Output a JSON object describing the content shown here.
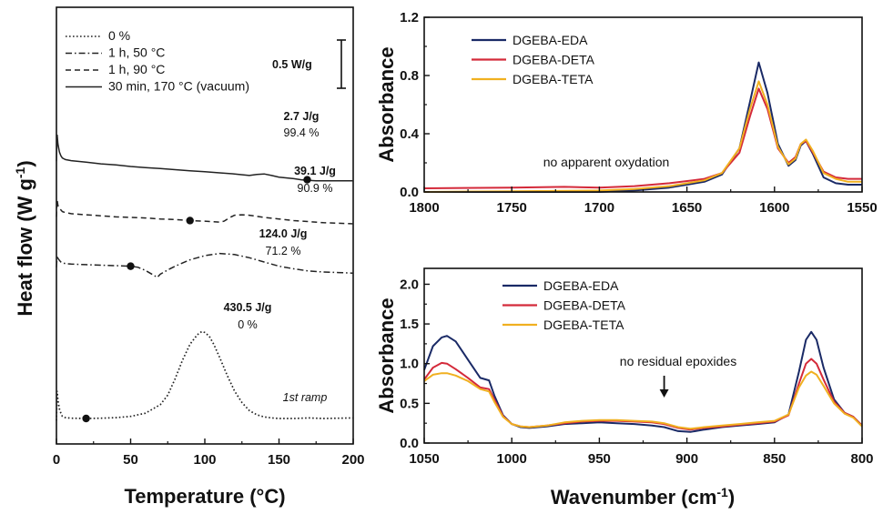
{
  "chart_data": [
    {
      "id": "dsc",
      "type": "line",
      "xlabel": "Temperature (°C)",
      "ylabel": "Heat flow (W g-1)",
      "ylabel_main": "Heat flow (W g",
      "ylabel_sup": "-1",
      "ylabel_tail": ")",
      "xlim": [
        0,
        200
      ],
      "xticks": [
        0,
        50,
        100,
        150,
        200
      ],
      "scale_bar_label": "0.5 W/g",
      "ramp_label": "1st ramp",
      "series": [
        {
          "name": "0 %",
          "style": "dotted",
          "x": [
            0,
            0.5,
            1,
            2,
            3,
            4,
            6,
            10,
            20,
            30,
            40,
            50,
            60,
            70,
            75,
            80,
            85,
            90,
            95,
            98,
            100,
            103,
            106,
            110,
            115,
            120,
            125,
            130,
            135,
            140,
            145,
            150,
            160,
            170,
            180,
            190,
            200
          ],
          "y": [
            -0.04,
            0.52,
            0.35,
            0.18,
            0.1,
            0.04,
            0.015,
            0.005,
            0.0,
            0.005,
            0.015,
            0.04,
            0.1,
            0.26,
            0.44,
            0.75,
            1.1,
            1.4,
            1.58,
            1.64,
            1.62,
            1.55,
            1.4,
            1.15,
            0.82,
            0.52,
            0.3,
            0.15,
            0.07,
            0.03,
            0.01,
            0.0,
            0.0,
            0.01,
            0.0,
            0.005,
            0.01
          ],
          "enthalpy": "430.5 J/g",
          "conversion": "0 %",
          "marker_x": 20,
          "marker_y": 0.0
        },
        {
          "name": "1 h, 50 °C",
          "style": "dashdot",
          "x": [
            0,
            0.5,
            1,
            2,
            3,
            4,
            6,
            10,
            20,
            30,
            40,
            50,
            55,
            60,
            65,
            68,
            70,
            75,
            80,
            90,
            100,
            110,
            120,
            130,
            140,
            150,
            160,
            170,
            180,
            190,
            200
          ],
          "y": [
            2.85,
            3.07,
            3.02,
            2.98,
            2.95,
            2.93,
            2.92,
            2.91,
            2.9,
            2.89,
            2.88,
            2.87,
            2.85,
            2.79,
            2.71,
            2.66,
            2.72,
            2.8,
            2.87,
            2.99,
            3.07,
            3.11,
            3.09,
            3.03,
            2.95,
            2.87,
            2.82,
            2.78,
            2.76,
            2.75,
            2.74
          ],
          "enthalpy": "124.0 J/g",
          "conversion": "71.2 %",
          "marker_x": 50,
          "marker_y": 2.87
        },
        {
          "name": "1 h, 90 °C",
          "style": "dashed",
          "x": [
            0,
            0.5,
            1,
            2,
            3,
            4,
            6,
            10,
            20,
            30,
            40,
            50,
            60,
            70,
            80,
            90,
            100,
            105,
            110,
            113,
            117,
            120,
            125,
            130,
            140,
            150,
            160,
            170,
            180,
            190,
            200
          ],
          "y": [
            3.8,
            4.12,
            4.02,
            3.96,
            3.93,
            3.9,
            3.88,
            3.86,
            3.84,
            3.82,
            3.8,
            3.79,
            3.78,
            3.76,
            3.75,
            3.73,
            3.72,
            3.71,
            3.7,
            3.72,
            3.79,
            3.83,
            3.84,
            3.83,
            3.79,
            3.76,
            3.73,
            3.71,
            3.69,
            3.68,
            3.67
          ],
          "enthalpy": "39.1 J/g",
          "conversion": "90.9 %",
          "marker_x": 90,
          "marker_y": 3.73
        },
        {
          "name": "30 min, 170 °C (vacuum)",
          "style": "solid",
          "x": [
            0,
            0.5,
            1,
            2,
            3,
            4,
            6,
            10,
            20,
            30,
            40,
            50,
            60,
            70,
            80,
            90,
            100,
            110,
            120,
            130,
            135,
            140,
            145,
            150,
            160,
            165,
            170,
            175,
            180,
            190,
            200
          ],
          "y": [
            4.85,
            5.35,
            5.18,
            5.02,
            4.95,
            4.91,
            4.88,
            4.86,
            4.83,
            4.8,
            4.78,
            4.75,
            4.73,
            4.71,
            4.69,
            4.67,
            4.65,
            4.63,
            4.61,
            4.58,
            4.6,
            4.61,
            4.58,
            4.55,
            4.52,
            4.5,
            4.49,
            4.48,
            4.48,
            4.48,
            4.48
          ],
          "enthalpy": "2.7 J/g",
          "conversion": "99.4 %",
          "marker_x": 169,
          "marker_y": 4.5
        }
      ]
    },
    {
      "id": "ftir-top",
      "type": "line",
      "xlabel": "",
      "ylabel": "Absorbance",
      "xlim": [
        1800,
        1550
      ],
      "ylim": [
        0,
        1.2
      ],
      "xticks": [
        1800,
        1750,
        1700,
        1650,
        1600,
        1550
      ],
      "yticks": [
        "0.0",
        "0.4",
        "0.8",
        "1.2"
      ],
      "annotation": "no apparent oxydation",
      "series": [
        {
          "name": "DGEBA-EDA",
          "color": "#1a2a66",
          "x": [
            1800,
            1750,
            1700,
            1680,
            1660,
            1640,
            1630,
            1620,
            1614,
            1609,
            1604,
            1598,
            1592,
            1588,
            1585,
            1582,
            1578,
            1572,
            1565,
            1558,
            1550
          ],
          "y": [
            0.0,
            0.0,
            0.0,
            0.01,
            0.03,
            0.07,
            0.12,
            0.3,
            0.62,
            0.89,
            0.68,
            0.33,
            0.18,
            0.22,
            0.32,
            0.35,
            0.26,
            0.1,
            0.06,
            0.05,
            0.05
          ]
        },
        {
          "name": "DGEBA-DETA",
          "color": "#d42a3a",
          "x": [
            1800,
            1750,
            1720,
            1700,
            1680,
            1660,
            1640,
            1630,
            1620,
            1614,
            1609,
            1604,
            1598,
            1592,
            1588,
            1585,
            1582,
            1578,
            1572,
            1565,
            1558,
            1550
          ],
          "y": [
            0.025,
            0.03,
            0.035,
            0.03,
            0.04,
            0.06,
            0.09,
            0.13,
            0.27,
            0.52,
            0.71,
            0.57,
            0.3,
            0.2,
            0.24,
            0.33,
            0.35,
            0.27,
            0.14,
            0.1,
            0.09,
            0.09
          ]
        },
        {
          "name": "DGEBA-TETA",
          "color": "#f0b020",
          "x": [
            1800,
            1750,
            1700,
            1680,
            1660,
            1640,
            1630,
            1620,
            1614,
            1609,
            1604,
            1598,
            1592,
            1588,
            1585,
            1582,
            1578,
            1572,
            1565,
            1558,
            1550
          ],
          "y": [
            0.0,
            0.005,
            0.01,
            0.02,
            0.04,
            0.08,
            0.13,
            0.3,
            0.57,
            0.76,
            0.6,
            0.31,
            0.19,
            0.23,
            0.33,
            0.36,
            0.28,
            0.13,
            0.09,
            0.07,
            0.07
          ]
        }
      ]
    },
    {
      "id": "ftir-bottom",
      "type": "line",
      "xlabel": "Wavenumber (cm-1)",
      "xlabel_main": "Wavenumber (cm",
      "xlabel_sup": "-1",
      "xlabel_tail": ")",
      "ylabel": "Absorbance",
      "xlim": [
        1050,
        800
      ],
      "ylim": [
        0,
        2.0
      ],
      "xticks": [
        1050,
        1000,
        950,
        900,
        850,
        800
      ],
      "yticks": [
        "0.0",
        "0.5",
        "1.0",
        "1.5",
        "2.0"
      ],
      "annotation": "no residual epoxides",
      "arrow_x": 913,
      "series": [
        {
          "name": "DGEBA-EDA",
          "color": "#1a2a66",
          "x": [
            1050,
            1045,
            1040,
            1037,
            1032,
            1025,
            1018,
            1013,
            1010,
            1005,
            1000,
            995,
            990,
            980,
            970,
            960,
            950,
            940,
            930,
            920,
            913,
            905,
            898,
            890,
            880,
            870,
            860,
            850,
            842,
            836,
            832,
            829,
            826,
            822,
            816,
            810,
            805,
            800
          ],
          "y": [
            0.92,
            1.22,
            1.33,
            1.35,
            1.28,
            1.05,
            0.82,
            0.79,
            0.6,
            0.35,
            0.24,
            0.2,
            0.19,
            0.21,
            0.24,
            0.25,
            0.26,
            0.25,
            0.24,
            0.22,
            0.2,
            0.15,
            0.14,
            0.17,
            0.2,
            0.22,
            0.24,
            0.26,
            0.36,
            0.9,
            1.3,
            1.4,
            1.3,
            0.95,
            0.55,
            0.38,
            0.33,
            0.22
          ]
        },
        {
          "name": "DGEBA-DETA",
          "color": "#d42a3a",
          "x": [
            1050,
            1045,
            1040,
            1037,
            1032,
            1025,
            1018,
            1013,
            1010,
            1005,
            1000,
            995,
            990,
            980,
            970,
            960,
            950,
            940,
            930,
            920,
            913,
            905,
            898,
            890,
            880,
            870,
            860,
            850,
            842,
            836,
            832,
            829,
            826,
            822,
            816,
            810,
            805,
            800
          ],
          "y": [
            0.8,
            0.95,
            1.01,
            1.0,
            0.93,
            0.82,
            0.7,
            0.68,
            0.55,
            0.34,
            0.24,
            0.21,
            0.2,
            0.22,
            0.25,
            0.27,
            0.28,
            0.28,
            0.27,
            0.26,
            0.24,
            0.19,
            0.17,
            0.19,
            0.21,
            0.23,
            0.25,
            0.27,
            0.35,
            0.75,
            1.0,
            1.06,
            1.0,
            0.8,
            0.52,
            0.38,
            0.33,
            0.22
          ]
        },
        {
          "name": "DGEBA-TETA",
          "color": "#f0b020",
          "x": [
            1050,
            1045,
            1040,
            1037,
            1032,
            1025,
            1018,
            1013,
            1010,
            1005,
            1000,
            995,
            990,
            980,
            970,
            960,
            950,
            940,
            930,
            920,
            913,
            905,
            898,
            890,
            880,
            870,
            860,
            850,
            842,
            836,
            832,
            829,
            826,
            822,
            816,
            810,
            805,
            800
          ],
          "y": [
            0.78,
            0.86,
            0.88,
            0.88,
            0.85,
            0.78,
            0.68,
            0.65,
            0.52,
            0.33,
            0.24,
            0.21,
            0.2,
            0.22,
            0.26,
            0.28,
            0.29,
            0.29,
            0.28,
            0.27,
            0.25,
            0.2,
            0.18,
            0.2,
            0.22,
            0.24,
            0.26,
            0.28,
            0.36,
            0.7,
            0.85,
            0.9,
            0.86,
            0.72,
            0.5,
            0.37,
            0.32,
            0.21
          ]
        }
      ]
    }
  ]
}
